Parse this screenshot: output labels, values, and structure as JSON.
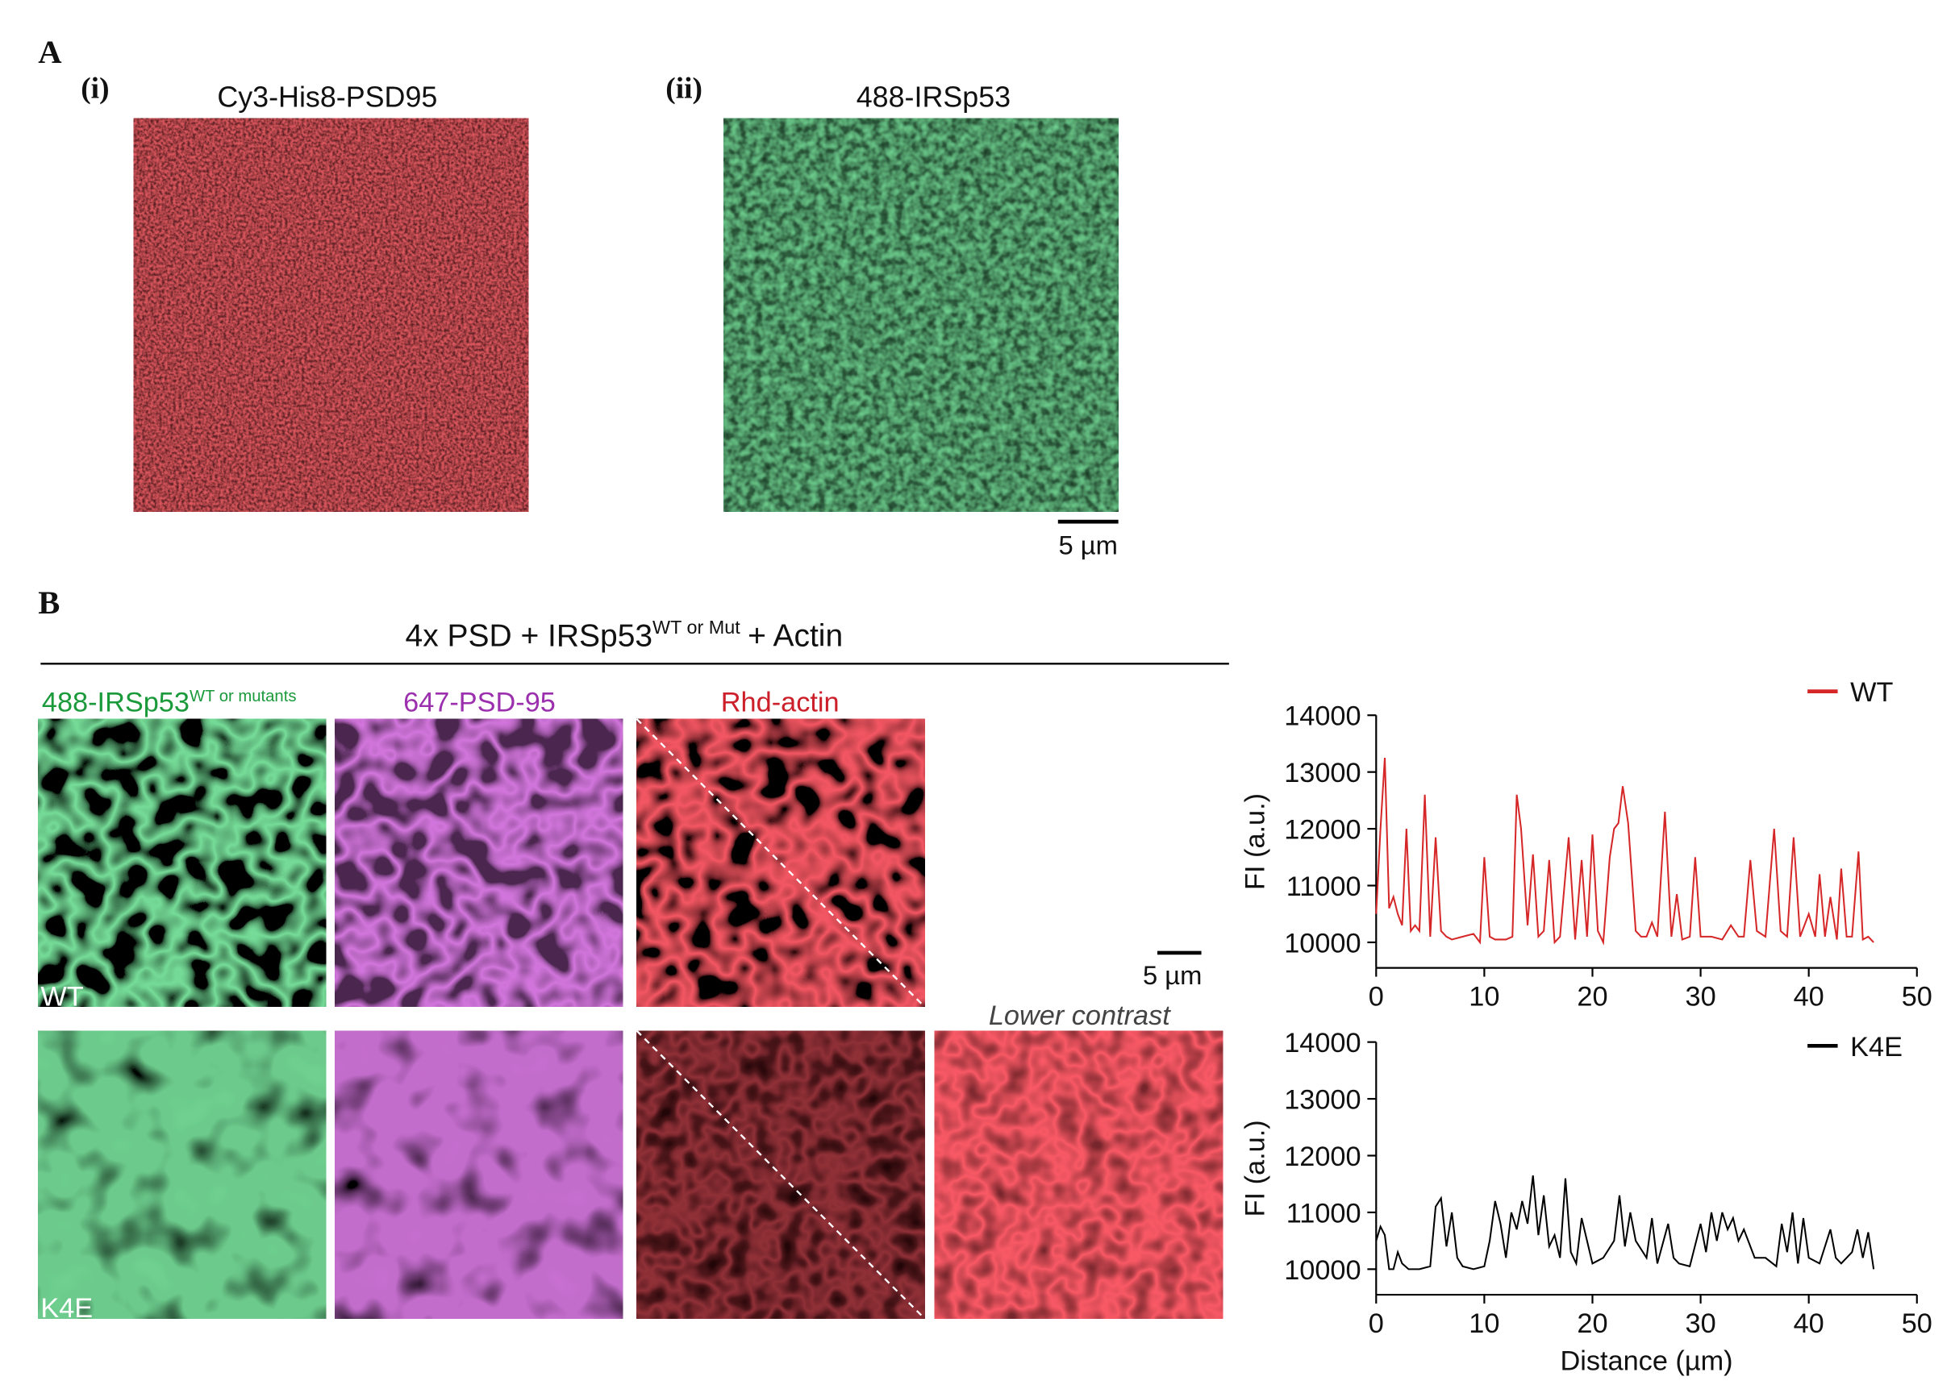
{
  "panel_a": {
    "letter": "A",
    "images": [
      {
        "index": "(i)",
        "label": "Cy3-His8-PSD95"
      },
      {
        "index": "(ii)",
        "label": "488-IRSp53"
      }
    ],
    "scale_bar": "5 µm"
  },
  "panel_b": {
    "letter": "B",
    "title_main": "4x PSD + IRSp53",
    "title_sup": "WT or Mut",
    "title_end": "+ Actin",
    "columns": [
      {
        "label": "488-IRSp53",
        "sup": "WT or mutants"
      },
      {
        "label": "647-PSD-95"
      },
      {
        "label": "Rhd-actin"
      }
    ],
    "rows": [
      "WT",
      "K4E"
    ],
    "scale_bar": "5 µm",
    "extra_column": "Lower contrast"
  },
  "chart_data": [
    {
      "type": "line",
      "ylabel": "FI (a.u.)",
      "x": [
        0,
        0.4,
        0.8,
        1.2,
        1.6,
        2.0,
        2.4,
        2.8,
        3.2,
        3.6,
        4.0,
        4.5,
        5.0,
        5.5,
        6.0,
        6.5,
        7,
        8,
        9,
        9.6,
        10,
        10.5,
        11,
        12,
        12.6,
        13,
        13.4,
        14,
        14.5,
        15,
        15.5,
        16,
        16.5,
        17,
        17.8,
        18.4,
        19,
        19.5,
        20,
        20.5,
        21,
        21.6,
        22,
        22.4,
        22.8,
        23.3,
        24,
        24.5,
        25,
        25.5,
        26,
        26.7,
        27.3,
        27.8,
        28.3,
        29,
        29.5,
        30,
        31,
        32,
        32.8,
        33.5,
        34,
        34.6,
        35.2,
        36,
        36.8,
        37.4,
        38,
        38.6,
        39.2,
        40,
        40.6,
        41,
        41.5,
        42,
        42.6,
        43,
        43.5,
        44,
        44.6,
        45,
        45.5,
        46
      ],
      "series": [
        {
          "name": "WT",
          "color": "#d62728",
          "values": [
            10500,
            12000,
            13250,
            10600,
            10800,
            10500,
            10300,
            12000,
            10200,
            10300,
            10200,
            12600,
            10100,
            11850,
            10200,
            10100,
            10050,
            10100,
            10150,
            10000,
            11500,
            10100,
            10050,
            10050,
            10100,
            12600,
            12000,
            10300,
            11550,
            10100,
            10200,
            11450,
            10000,
            10100,
            11850,
            10050,
            11450,
            10100,
            11900,
            10200,
            10000,
            11500,
            12000,
            12100,
            12750,
            12100,
            10200,
            10100,
            10100,
            10350,
            10100,
            12300,
            10100,
            10850,
            10050,
            10100,
            11500,
            10100,
            10100,
            10050,
            10300,
            10100,
            10100,
            11450,
            10200,
            10100,
            12000,
            10200,
            10100,
            11850,
            10100,
            10500,
            10100,
            11200,
            10100,
            10800,
            10050,
            11300,
            10100,
            10100,
            11600,
            10050,
            10100,
            10000
          ]
        }
      ],
      "xlim": [
        0,
        50
      ],
      "xticks": [
        0,
        10,
        20,
        30,
        40,
        50
      ],
      "ylim": [
        9550,
        14000
      ],
      "yticks": [
        10000,
        11000,
        12000,
        13000,
        14000
      ]
    },
    {
      "type": "line",
      "ylabel": "FI (a.u.)",
      "xlabel": "Distance (µm)",
      "x": [
        0,
        0.4,
        0.8,
        1.2,
        1.6,
        2.0,
        2.4,
        3,
        4,
        5,
        5.5,
        6,
        6.5,
        7,
        7.5,
        8,
        9,
        10,
        10.5,
        11,
        11.5,
        12,
        12.5,
        13,
        13.5,
        14,
        14.5,
        15,
        15.5,
        16,
        16.5,
        17,
        17.5,
        18,
        18.5,
        19,
        20,
        21,
        22,
        22.5,
        23,
        23.5,
        24,
        25,
        25.5,
        26,
        27,
        27.5,
        28,
        29,
        30,
        30.5,
        31,
        31.5,
        32,
        32.5,
        33,
        33.5,
        34,
        35,
        36,
        37,
        37.5,
        38,
        38.5,
        39,
        39.5,
        40,
        41,
        42,
        42.5,
        43,
        44,
        44.5,
        45,
        45.5,
        46
      ],
      "series": [
        {
          "name": "K4E",
          "color": "#000000",
          "values": [
            10500,
            10750,
            10600,
            10000,
            10000,
            10300,
            10100,
            10000,
            10000,
            10050,
            11100,
            11250,
            10400,
            11000,
            10200,
            10050,
            10000,
            10050,
            10500,
            11200,
            10800,
            10200,
            11000,
            10700,
            11200,
            10800,
            11650,
            10600,
            11300,
            10400,
            10600,
            10200,
            11600,
            10300,
            10100,
            10900,
            10100,
            10200,
            10500,
            11300,
            10400,
            11000,
            10500,
            10200,
            10900,
            10100,
            10800,
            10200,
            10100,
            10050,
            10800,
            10300,
            11000,
            10500,
            11000,
            10700,
            10900,
            10500,
            10700,
            10200,
            10200,
            10050,
            10800,
            10300,
            11000,
            10100,
            10900,
            10200,
            10100,
            10700,
            10200,
            10100,
            10300,
            10700,
            10200,
            10650,
            10000
          ]
        }
      ],
      "xlim": [
        0,
        50
      ],
      "xticks": [
        0,
        10,
        20,
        30,
        40,
        50
      ],
      "ylim": [
        9550,
        14000
      ],
      "yticks": [
        10000,
        11000,
        12000,
        13000,
        14000
      ]
    }
  ]
}
